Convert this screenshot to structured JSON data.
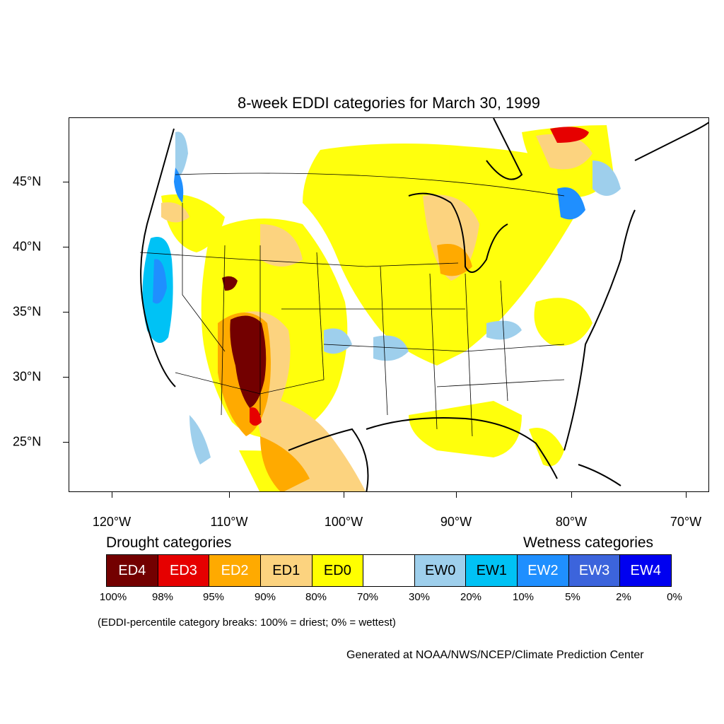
{
  "title": "8-week EDDI categories for March 30, 1999",
  "map": {
    "lon_labels": [
      "120°W",
      "110°W",
      "100°W",
      "90°W",
      "80°W",
      "70°W"
    ],
    "lat_labels": [
      "45°N",
      "40°N",
      "35°N",
      "30°N",
      "25°N"
    ]
  },
  "legend": {
    "drought_heading": "Drought categories",
    "wetness_heading": "Wetness categories",
    "categories": [
      {
        "label": "ED4",
        "color": "#730000",
        "text_color": "#ffffff"
      },
      {
        "label": "ED3",
        "color": "#e60000",
        "text_color": "#ffffff"
      },
      {
        "label": "ED2",
        "color": "#ffaa00",
        "text_color": "#ffffff"
      },
      {
        "label": "ED1",
        "color": "#fcd37f",
        "text_color": "#000000"
      },
      {
        "label": "ED0",
        "color": "#ffff00",
        "text_color": "#000000"
      },
      {
        "label": "",
        "color": "#ffffff",
        "text_color": "#000000"
      },
      {
        "label": "EW0",
        "color": "#9ecfec",
        "text_color": "#000000"
      },
      {
        "label": "EW1",
        "color": "#00c2f5",
        "text_color": "#000000"
      },
      {
        "label": "EW2",
        "color": "#1f8fff",
        "text_color": "#ffffff"
      },
      {
        "label": "EW3",
        "color": "#3c64dc",
        "text_color": "#ffffff"
      },
      {
        "label": "EW4",
        "color": "#0000f0",
        "text_color": "#ffffff"
      }
    ],
    "breaks": [
      "100%",
      "98%",
      "95%",
      "90%",
      "80%",
      "70%",
      "30%",
      "20%",
      "10%",
      "5%",
      "2%",
      "0%"
    ]
  },
  "note": "(EDDI-percentile category breaks: 100% = driest; 0% = wettest)",
  "credit": "Generated at NOAA/NWS/NCEP/Climate Prediction Center"
}
